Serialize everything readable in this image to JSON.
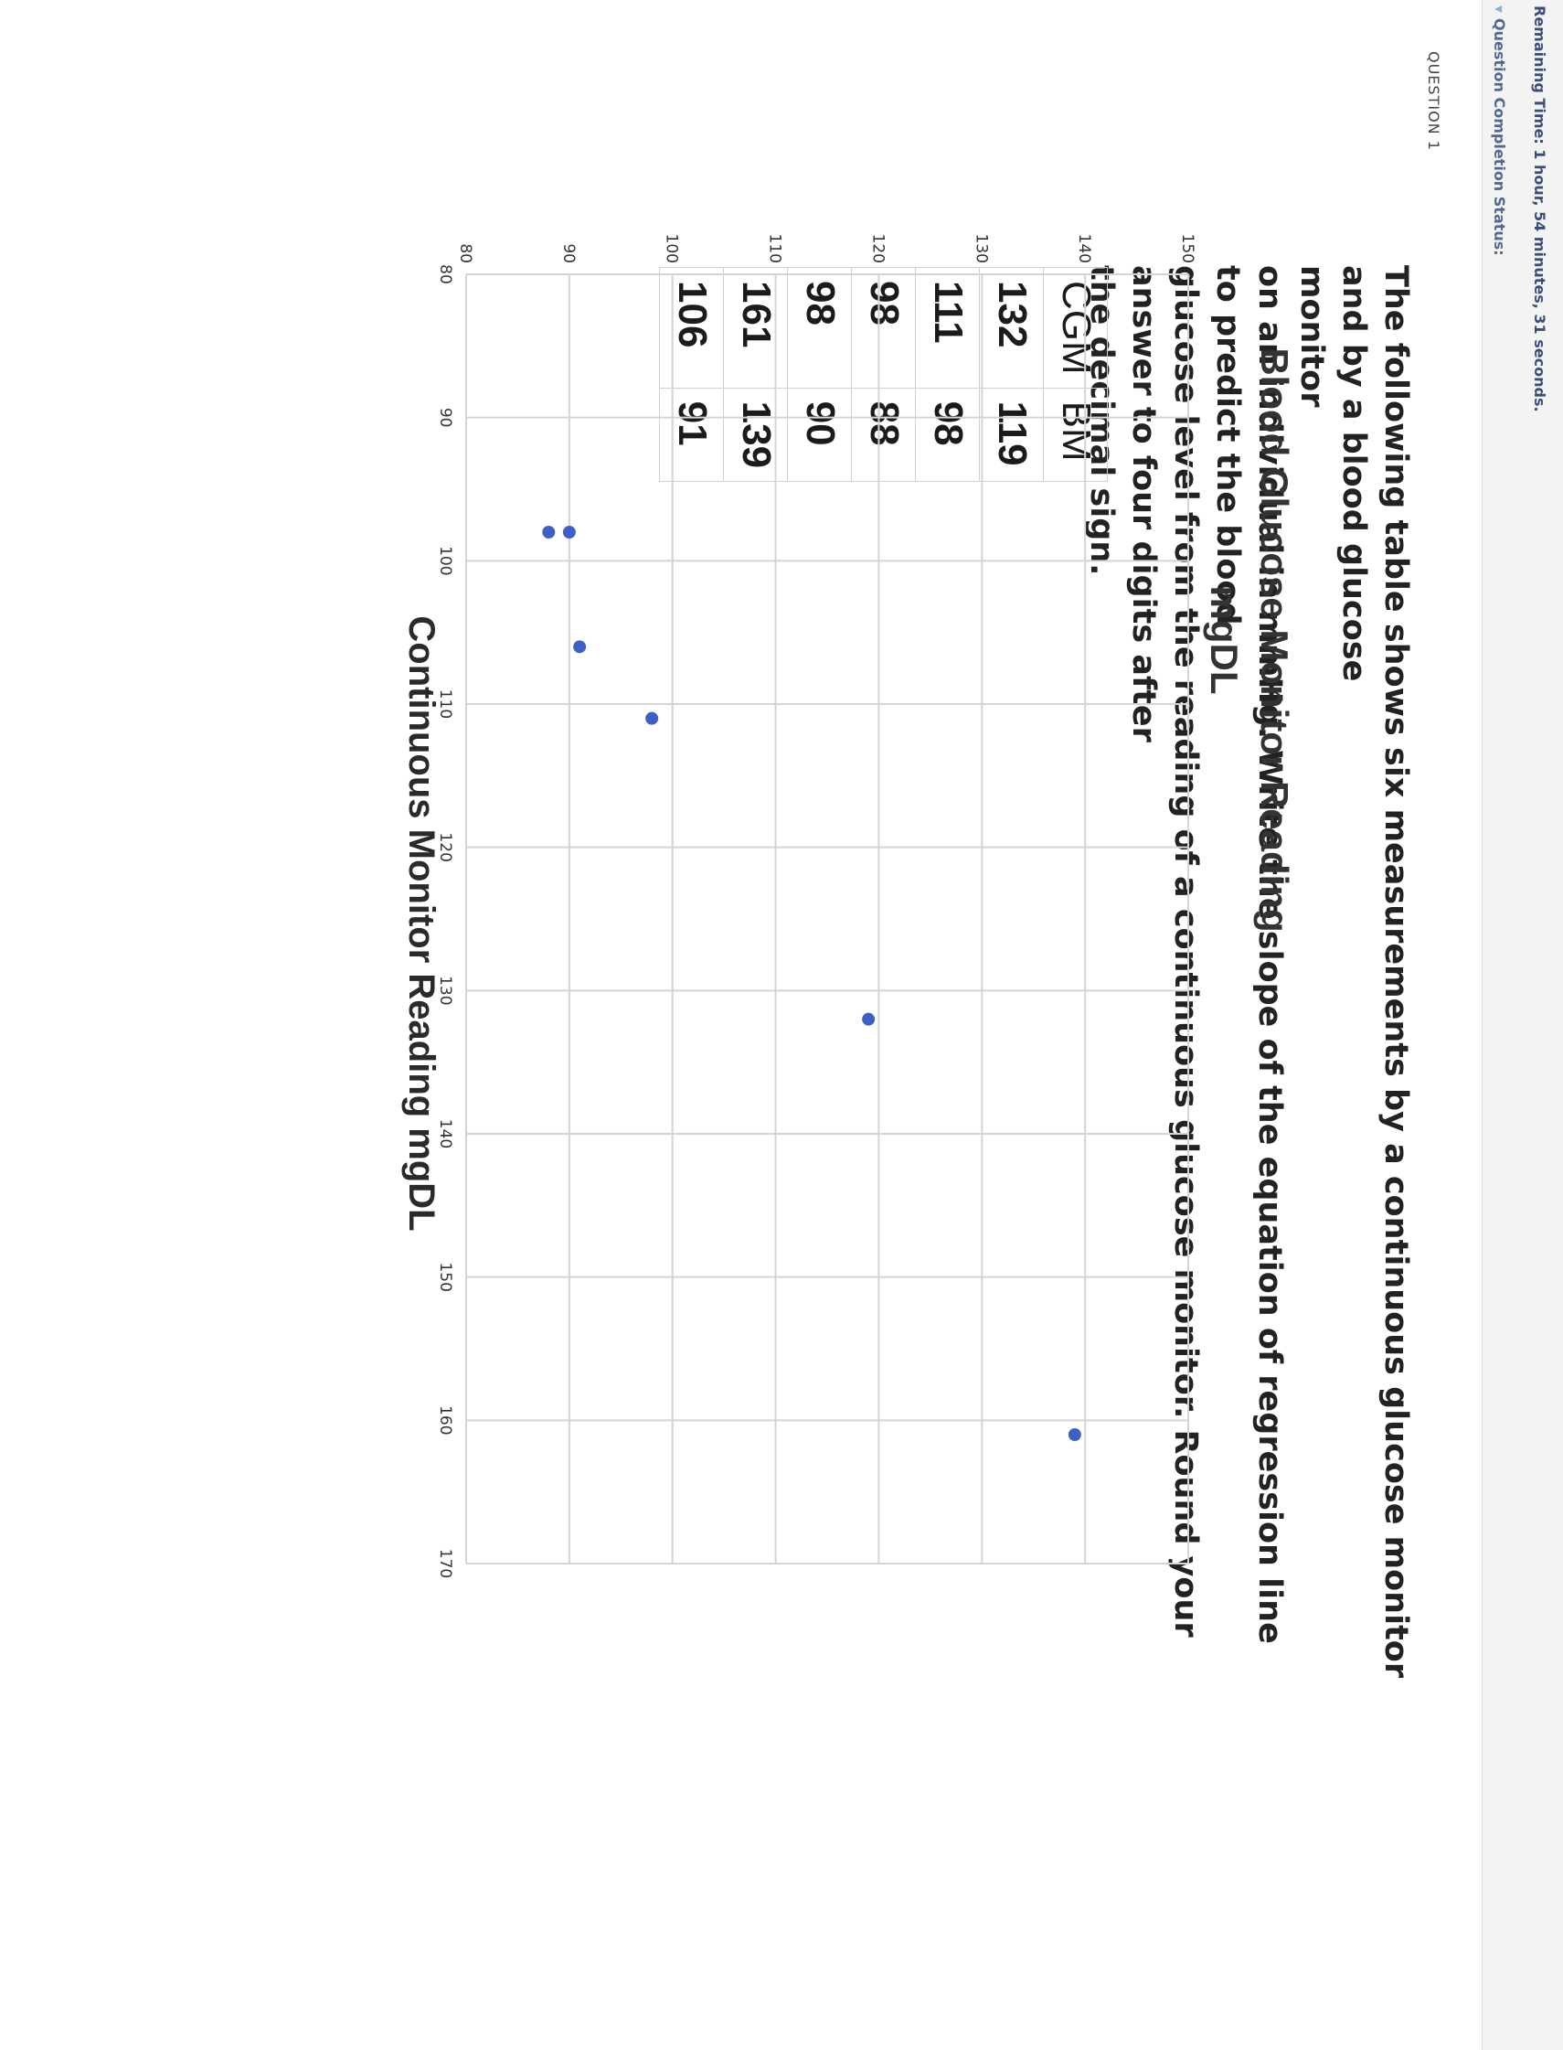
{
  "header": {
    "timer_text": "Remaining Time: 1 hour, 54 minutes, 31 seconds.",
    "completion_label": "Question Completion Status:"
  },
  "question": {
    "label": "QUESTION 1",
    "text_lines": [
      "The following table shows six measurements by a continuous glucose monitor and by a blood glucose",
      "monitor",
      "on an individual in mmHg. Write the slope of the equation of regression line to predict the blood",
      "glucose level from the reading of a continuous glucose monitor. Round your answer to four digits after",
      "the decimal sign."
    ]
  },
  "table": {
    "headers": [
      "CGM",
      "BM"
    ],
    "rows": [
      [
        "132",
        "119"
      ],
      [
        "111",
        "98"
      ],
      [
        "98",
        "88"
      ],
      [
        "98",
        "90"
      ],
      [
        "161",
        "139"
      ],
      [
        "106",
        "91"
      ]
    ]
  },
  "colors": {
    "point": "#3f5fc4",
    "grid": "#d4d4d4"
  },
  "chart_data": {
    "type": "scatter",
    "title": "Blood Glucose Monitor Reading",
    "ylabel": "mgDL",
    "xlabel": "Continuous Monitor Reading mgDL",
    "xlim": [
      80,
      170
    ],
    "ylim": [
      80,
      150
    ],
    "x_ticks": [
      80,
      90,
      100,
      110,
      120,
      130,
      140,
      150,
      160,
      170
    ],
    "y_ticks": [
      80,
      90,
      100,
      110,
      120,
      130,
      140,
      150
    ],
    "grid": true,
    "points": [
      {
        "x": 98,
        "y": 88
      },
      {
        "x": 98,
        "y": 90
      },
      {
        "x": 106,
        "y": 91
      },
      {
        "x": 111,
        "y": 98
      },
      {
        "x": 132,
        "y": 119
      },
      {
        "x": 161,
        "y": 139
      }
    ]
  }
}
